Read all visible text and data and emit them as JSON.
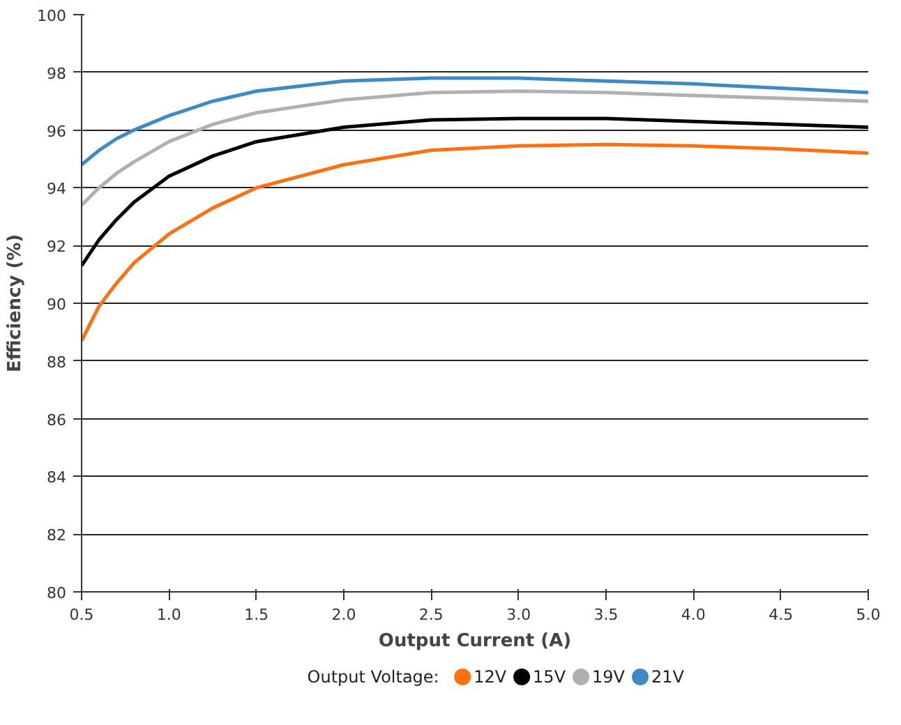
{
  "chart_data": {
    "type": "line",
    "xlabel": "Output Current (A)",
    "ylabel": "Efficiency (%)",
    "legend_title": "Output Voltage:",
    "legend": "bottom",
    "grid": "y",
    "marker": "none",
    "line_style": "solid",
    "x": [
      0.5,
      0.6,
      0.7,
      0.8,
      1.0,
      1.25,
      1.5,
      2.0,
      2.5,
      3.0,
      3.5,
      4.0,
      4.5,
      5.0
    ],
    "xlim": [
      0.5,
      5.0
    ],
    "xticks": [
      {
        "value": 0.5,
        "label": "0.5"
      },
      {
        "value": 1.0,
        "label": "1.0"
      },
      {
        "value": 1.5,
        "label": "1.5"
      },
      {
        "value": 2.0,
        "label": "2.0"
      },
      {
        "value": 2.5,
        "label": "2.5"
      },
      {
        "value": 3.0,
        "label": "3.0"
      },
      {
        "value": 3.5,
        "label": "3.5"
      },
      {
        "value": 4.0,
        "label": "4.0"
      },
      {
        "value": 4.5,
        "label": "4.5"
      },
      {
        "value": 5.0,
        "label": "5.0"
      }
    ],
    "ylim": [
      80,
      100
    ],
    "yticks": [
      80,
      82,
      84,
      86,
      88,
      90,
      92,
      94,
      96,
      98,
      100
    ],
    "series": [
      {
        "name": "12V",
        "color": "#ff7010",
        "values": [
          88.7,
          89.9,
          90.7,
          91.4,
          92.4,
          93.3,
          94.0,
          94.8,
          95.3,
          95.45,
          95.5,
          95.45,
          95.35,
          95.2
        ]
      },
      {
        "name": "15V",
        "color": "#000000",
        "values": [
          91.3,
          92.2,
          92.9,
          93.5,
          94.4,
          95.1,
          95.6,
          96.1,
          96.35,
          96.4,
          96.4,
          96.3,
          96.2,
          96.1
        ]
      },
      {
        "name": "19V",
        "color": "#b0b0b0",
        "values": [
          93.4,
          94.0,
          94.5,
          94.9,
          95.6,
          96.2,
          96.6,
          97.05,
          97.3,
          97.35,
          97.3,
          97.2,
          97.1,
          97.0
        ]
      },
      {
        "name": "21V",
        "color": "#3e8ac4",
        "values": [
          94.8,
          95.3,
          95.7,
          96.0,
          96.5,
          97.0,
          97.35,
          97.7,
          97.8,
          97.8,
          97.7,
          97.6,
          97.45,
          97.3
        ]
      }
    ]
  }
}
